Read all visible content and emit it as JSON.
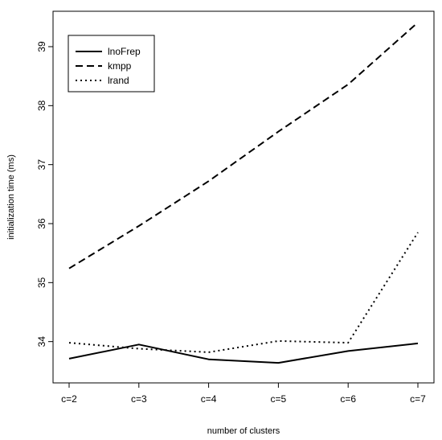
{
  "chart_data": {
    "type": "line",
    "title": "",
    "xlabel": "number of clusters",
    "ylabel": "initialization time (ms)",
    "categories": [
      "c=2",
      "c=3",
      "c=4",
      "c=5",
      "c=6",
      "c=7"
    ],
    "ylim": [
      33.3,
      39.6
    ],
    "yticks": [
      34,
      35,
      36,
      37,
      38,
      39
    ],
    "grid": false,
    "legend_position": "top-left",
    "series": [
      {
        "name": "lnoFrep",
        "line_style": "solid",
        "color": "#000000",
        "values": [
          33.71,
          33.95,
          33.7,
          33.64,
          33.84,
          33.97
        ]
      },
      {
        "name": "kmpp",
        "line_style": "dashed",
        "color": "#000000",
        "values": [
          35.24,
          35.96,
          36.72,
          37.56,
          38.36,
          39.41
        ]
      },
      {
        "name": "lrand",
        "line_style": "dotted",
        "color": "#000000",
        "values": [
          33.98,
          33.88,
          33.82,
          34.01,
          33.98,
          35.85
        ]
      }
    ]
  }
}
